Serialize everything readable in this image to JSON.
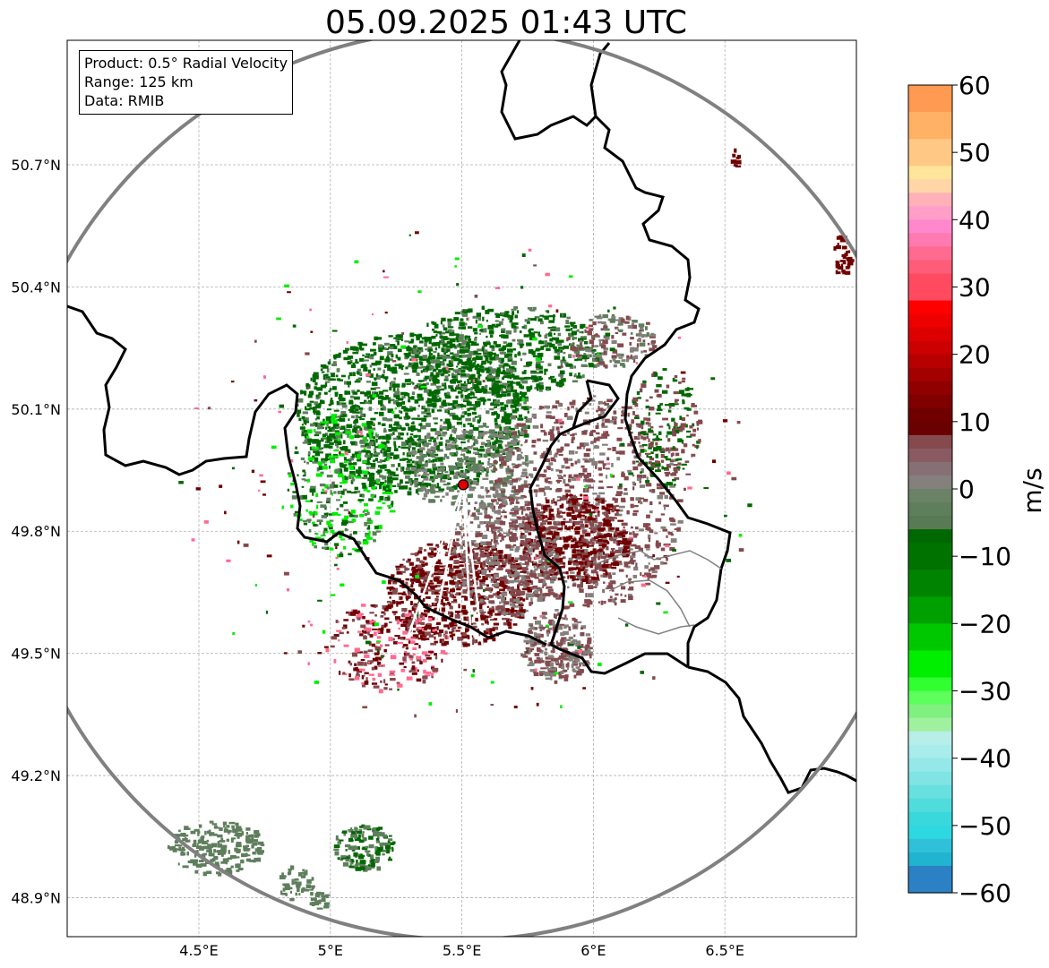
{
  "title": "05.09.2025 01:43 UTC",
  "info_box": {
    "product": "Product: 0.5° Radial Velocity",
    "range": "Range: 125 km",
    "data": "Data: RMIB"
  },
  "axes": {
    "x_ticks": [
      "4.5°E",
      "5°E",
      "5.5°E",
      "6°E",
      "6.5°E"
    ],
    "x_values": [
      4.5,
      5.0,
      5.5,
      6.0,
      6.5
    ],
    "y_ticks": [
      "50.7°N",
      "50.4°N",
      "50.1°N",
      "49.8°N",
      "49.5°N",
      "49.2°N",
      "48.9°N"
    ],
    "y_values": [
      50.7,
      50.4,
      50.1,
      49.8,
      49.5,
      49.2,
      48.9
    ],
    "lon_range": [
      4.0,
      7.0
    ],
    "lat_range": [
      48.8,
      51.0
    ],
    "grid": true
  },
  "radar": {
    "lon": 5.505,
    "lat": 49.914,
    "range_circle_color": "#808080",
    "site_marker_color": "#e00000"
  },
  "colorbar": {
    "label": "m/s",
    "min": -60,
    "max": 60,
    "ticks": [
      "60",
      "50",
      "40",
      "30",
      "20",
      "10",
      "0",
      "−10",
      "−20",
      "−30",
      "−40",
      "−50",
      "−60"
    ],
    "tick_values": [
      60,
      50,
      40,
      30,
      20,
      10,
      0,
      -10,
      -20,
      -30,
      -40,
      -50,
      -60
    ],
    "stops": [
      {
        "from": 56,
        "to": 60,
        "color": "#ff9a52"
      },
      {
        "from": 52,
        "to": 56,
        "color": "#ffb166"
      },
      {
        "from": 48,
        "to": 52,
        "color": "#ffc884"
      },
      {
        "from": 46,
        "to": 48,
        "color": "#ffe49c"
      },
      {
        "from": 44,
        "to": 46,
        "color": "#ffd6a8"
      },
      {
        "from": 42,
        "to": 44,
        "color": "#ffb0b8"
      },
      {
        "from": 40,
        "to": 42,
        "color": "#ff9ec8"
      },
      {
        "from": 38,
        "to": 40,
        "color": "#ff88cc"
      },
      {
        "from": 36,
        "to": 38,
        "color": "#ff7ab0"
      },
      {
        "from": 34,
        "to": 36,
        "color": "#ff6a90"
      },
      {
        "from": 32,
        "to": 34,
        "color": "#ff5c7a"
      },
      {
        "from": 28,
        "to": 32,
        "color": "#ff4a60"
      },
      {
        "from": 26,
        "to": 28,
        "color": "#ff0000"
      },
      {
        "from": 24,
        "to": 26,
        "color": "#ee0000"
      },
      {
        "from": 22,
        "to": 24,
        "color": "#dd0000"
      },
      {
        "from": 20,
        "to": 22,
        "color": "#cc0000"
      },
      {
        "from": 18,
        "to": 20,
        "color": "#b80000"
      },
      {
        "from": 16,
        "to": 18,
        "color": "#a40000"
      },
      {
        "from": 14,
        "to": 16,
        "color": "#900000"
      },
      {
        "from": 12,
        "to": 14,
        "color": "#800000"
      },
      {
        "from": 10,
        "to": 12,
        "color": "#700000"
      },
      {
        "from": 8,
        "to": 10,
        "color": "#6a0000"
      },
      {
        "from": 6,
        "to": 8,
        "color": "#844a4e"
      },
      {
        "from": 4,
        "to": 6,
        "color": "#8a5a62"
      },
      {
        "from": 2,
        "to": 4,
        "color": "#867076"
      },
      {
        "from": 0,
        "to": 2,
        "color": "#84807c"
      },
      {
        "from": -2,
        "to": 0,
        "color": "#6a8266"
      },
      {
        "from": -4,
        "to": -2,
        "color": "#5e7e5c"
      },
      {
        "from": -6,
        "to": -4,
        "color": "#587a54"
      },
      {
        "from": -8,
        "to": -6,
        "color": "#006800"
      },
      {
        "from": -12,
        "to": -8,
        "color": "#007200"
      },
      {
        "from": -16,
        "to": -12,
        "color": "#008400"
      },
      {
        "from": -20,
        "to": -16,
        "color": "#00a000"
      },
      {
        "from": -24,
        "to": -20,
        "color": "#00c800"
      },
      {
        "from": -28,
        "to": -24,
        "color": "#00ee00"
      },
      {
        "from": -30,
        "to": -28,
        "color": "#30ff30"
      },
      {
        "from": -32,
        "to": -30,
        "color": "#5cff5c"
      },
      {
        "from": -34,
        "to": -32,
        "color": "#80f080"
      },
      {
        "from": -36,
        "to": -34,
        "color": "#a0f0a0"
      },
      {
        "from": -38,
        "to": -36,
        "color": "#b8eee8"
      },
      {
        "from": -40,
        "to": -38,
        "color": "#a8ecec"
      },
      {
        "from": -42,
        "to": -40,
        "color": "#94e8e8"
      },
      {
        "from": -44,
        "to": -42,
        "color": "#80e4e4"
      },
      {
        "from": -46,
        "to": -44,
        "color": "#68e0e0"
      },
      {
        "from": -48,
        "to": -46,
        "color": "#50dcdc"
      },
      {
        "from": -50,
        "to": -48,
        "color": "#38d8dc"
      },
      {
        "from": -52,
        "to": -50,
        "color": "#2ed8e0"
      },
      {
        "from": -54,
        "to": -52,
        "color": "#30c0d8"
      },
      {
        "from": -56,
        "to": -54,
        "color": "#20b4d0"
      },
      {
        "from": -60,
        "to": -56,
        "color": "#2c80c4"
      }
    ]
  },
  "echo_colors": {
    "inbound_green": "#006800",
    "inbound_grey_green": "#5e7e5c",
    "near_zero": "#84807c",
    "outbound_mauve": "#844a4e",
    "outbound_dark_red": "#700000",
    "bright_green": "#00ee00",
    "pink": "#ff6a90"
  }
}
